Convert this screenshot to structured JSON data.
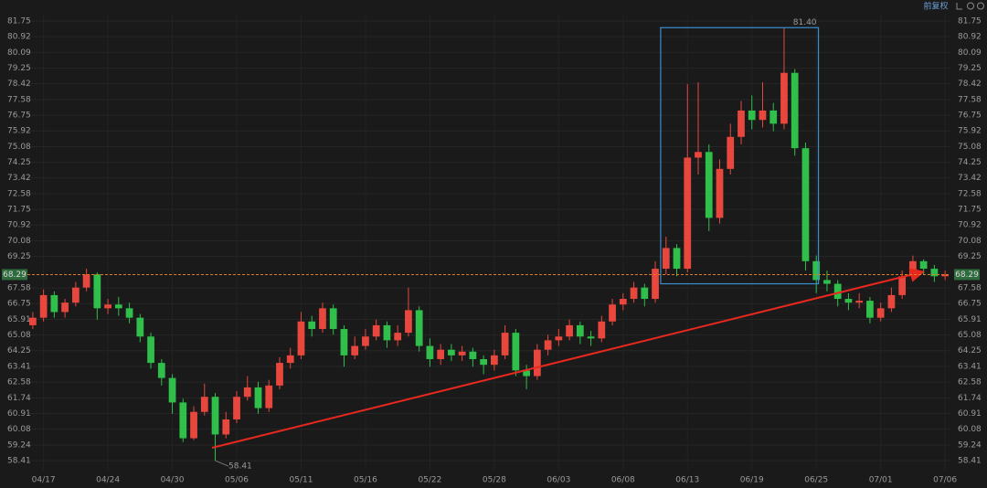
{
  "chart_data": {
    "type": "candlestick",
    "toolbar_label": "前复权",
    "categories": [
      null,
      "04/17",
      null,
      null,
      null,
      null,
      null,
      "04/24",
      null,
      null,
      null,
      null,
      null,
      "04/30",
      null,
      null,
      null,
      null,
      null,
      "05/06",
      null,
      null,
      null,
      null,
      null,
      "05/11",
      null,
      null,
      null,
      null,
      null,
      "05/16",
      null,
      null,
      null,
      null,
      null,
      "05/22",
      null,
      null,
      null,
      null,
      null,
      "05/28",
      null,
      null,
      null,
      null,
      null,
      "06/03",
      null,
      null,
      null,
      null,
      null,
      "06/08",
      null,
      null,
      null,
      null,
      null,
      "06/13",
      null,
      null,
      null,
      null,
      null,
      "06/19",
      null,
      null,
      null,
      null,
      null,
      "06/25",
      null,
      null,
      null,
      null,
      null,
      "07/01",
      null,
      null,
      null,
      null,
      null,
      "07/06"
    ],
    "open": [
      65.6,
      66.0,
      67.2,
      66.3,
      66.8,
      67.6,
      68.3,
      66.5,
      66.7,
      66.5,
      66.0,
      65.0,
      63.6,
      62.8,
      61.5,
      59.6,
      61.0,
      61.8,
      59.8,
      60.6,
      61.8,
      62.3,
      61.2,
      62.4,
      63.6,
      64.0,
      65.8,
      65.4,
      66.5,
      65.4,
      64.0,
      64.5,
      65.0,
      65.6,
      64.8,
      65.2,
      66.4,
      64.5,
      63.8,
      64.3,
      64.0,
      64.2,
      63.8,
      63.5,
      64.0,
      65.2,
      63.2,
      62.9,
      64.3,
      64.8,
      65.0,
      65.6,
      65.0,
      64.9,
      65.8,
      66.7,
      67.0,
      67.6,
      67.0,
      68.6,
      69.7,
      68.6,
      74.5,
      74.8,
      71.3,
      73.9,
      75.6,
      77.0,
      76.5,
      77.0,
      76.3,
      79.0,
      75.0,
      69.0,
      68.0,
      67.8,
      67.0,
      66.8,
      66.9,
      66.0,
      66.5,
      67.2,
      68.2,
      69.0,
      68.6,
      68.2
    ],
    "high": [
      66.3,
      67.5,
      67.4,
      67.0,
      67.9,
      68.6,
      68.4,
      67.0,
      67.1,
      66.8,
      66.2,
      65.2,
      63.8,
      63.0,
      61.7,
      61.3,
      62.5,
      62.0,
      61.0,
      62.1,
      62.9,
      62.6,
      62.7,
      63.9,
      64.4,
      66.3,
      66.1,
      66.8,
      66.7,
      65.6,
      65.0,
      65.4,
      65.9,
      65.8,
      65.6,
      67.6,
      66.6,
      64.9,
      64.6,
      64.6,
      64.5,
      64.4,
      64.0,
      64.3,
      65.6,
      65.4,
      63.5,
      64.6,
      65.1,
      65.4,
      65.9,
      65.8,
      65.3,
      66.1,
      67.0,
      67.3,
      67.9,
      67.8,
      69.0,
      70.3,
      69.9,
      78.4,
      78.5,
      75.2,
      74.4,
      76.3,
      77.5,
      77.8,
      78.5,
      77.4,
      81.4,
      79.2,
      75.3,
      69.3,
      68.5,
      68.0,
      67.3,
      67.3,
      67.1,
      66.8,
      67.6,
      68.5,
      69.3,
      69.1,
      68.8,
      68.5
    ],
    "low": [
      65.4,
      65.8,
      66.0,
      66.0,
      66.6,
      67.4,
      65.9,
      66.2,
      66.1,
      65.7,
      64.7,
      63.3,
      62.4,
      60.9,
      59.4,
      59.5,
      60.8,
      58.41,
      59.6,
      60.4,
      61.6,
      60.9,
      61.0,
      62.2,
      63.3,
      63.8,
      65.0,
      65.2,
      65.1,
      63.4,
      63.8,
      64.3,
      64.8,
      64.4,
      64.5,
      65.0,
      64.2,
      63.4,
      63.5,
      63.7,
      63.7,
      63.4,
      63.0,
      63.2,
      63.8,
      62.9,
      62.2,
      62.7,
      64.0,
      64.5,
      64.8,
      64.6,
      64.5,
      64.7,
      65.6,
      66.4,
      66.8,
      66.6,
      66.8,
      68.3,
      68.2,
      68.4,
      73.6,
      70.6,
      71.0,
      73.6,
      75.2,
      76.0,
      76.1,
      75.9,
      76.0,
      74.6,
      68.5,
      67.3,
      67.4,
      66.6,
      66.4,
      66.5,
      65.7,
      65.8,
      66.3,
      67.0,
      68.0,
      68.3,
      67.9,
      68.0
    ],
    "close": [
      66.0,
      67.2,
      66.3,
      66.8,
      67.6,
      68.3,
      66.5,
      66.7,
      66.5,
      66.0,
      65.0,
      63.6,
      62.8,
      61.5,
      59.6,
      61.0,
      61.8,
      59.8,
      60.6,
      61.8,
      62.3,
      61.2,
      62.4,
      63.6,
      64.0,
      65.8,
      65.4,
      66.5,
      65.4,
      64.0,
      64.5,
      65.0,
      65.6,
      64.8,
      65.2,
      66.4,
      64.5,
      63.8,
      64.3,
      64.0,
      64.2,
      63.8,
      63.5,
      64.0,
      65.2,
      63.2,
      62.9,
      64.3,
      64.8,
      65.0,
      65.6,
      65.0,
      64.9,
      65.8,
      66.7,
      67.0,
      67.6,
      67.0,
      68.6,
      69.7,
      68.6,
      74.5,
      74.8,
      71.3,
      73.9,
      75.6,
      77.0,
      76.5,
      77.0,
      76.3,
      79.0,
      75.0,
      69.0,
      68.0,
      67.8,
      67.0,
      66.8,
      66.9,
      66.0,
      66.5,
      67.2,
      68.2,
      69.0,
      68.6,
      68.2,
      68.29
    ],
    "up_color": "#e8473e",
    "down_color": "#2fbf4a",
    "ylim": [
      57.88,
      82.14
    ],
    "yticks": [
      81.75,
      80.92,
      80.09,
      79.25,
      78.42,
      77.58,
      76.75,
      75.92,
      75.08,
      74.25,
      73.42,
      72.58,
      71.75,
      70.92,
      70.08,
      69.25,
      67.58,
      66.75,
      65.91,
      65.08,
      64.25,
      63.41,
      62.58,
      61.74,
      60.91,
      60.08,
      59.24,
      58.41
    ],
    "grid": true,
    "last_price": {
      "value": 68.29,
      "label": "68.29",
      "color": "#e07b28"
    },
    "high_label": {
      "value": 81.4,
      "label": "81.40"
    },
    "low_label": {
      "value": 58.41,
      "label": "58.41"
    }
  }
}
